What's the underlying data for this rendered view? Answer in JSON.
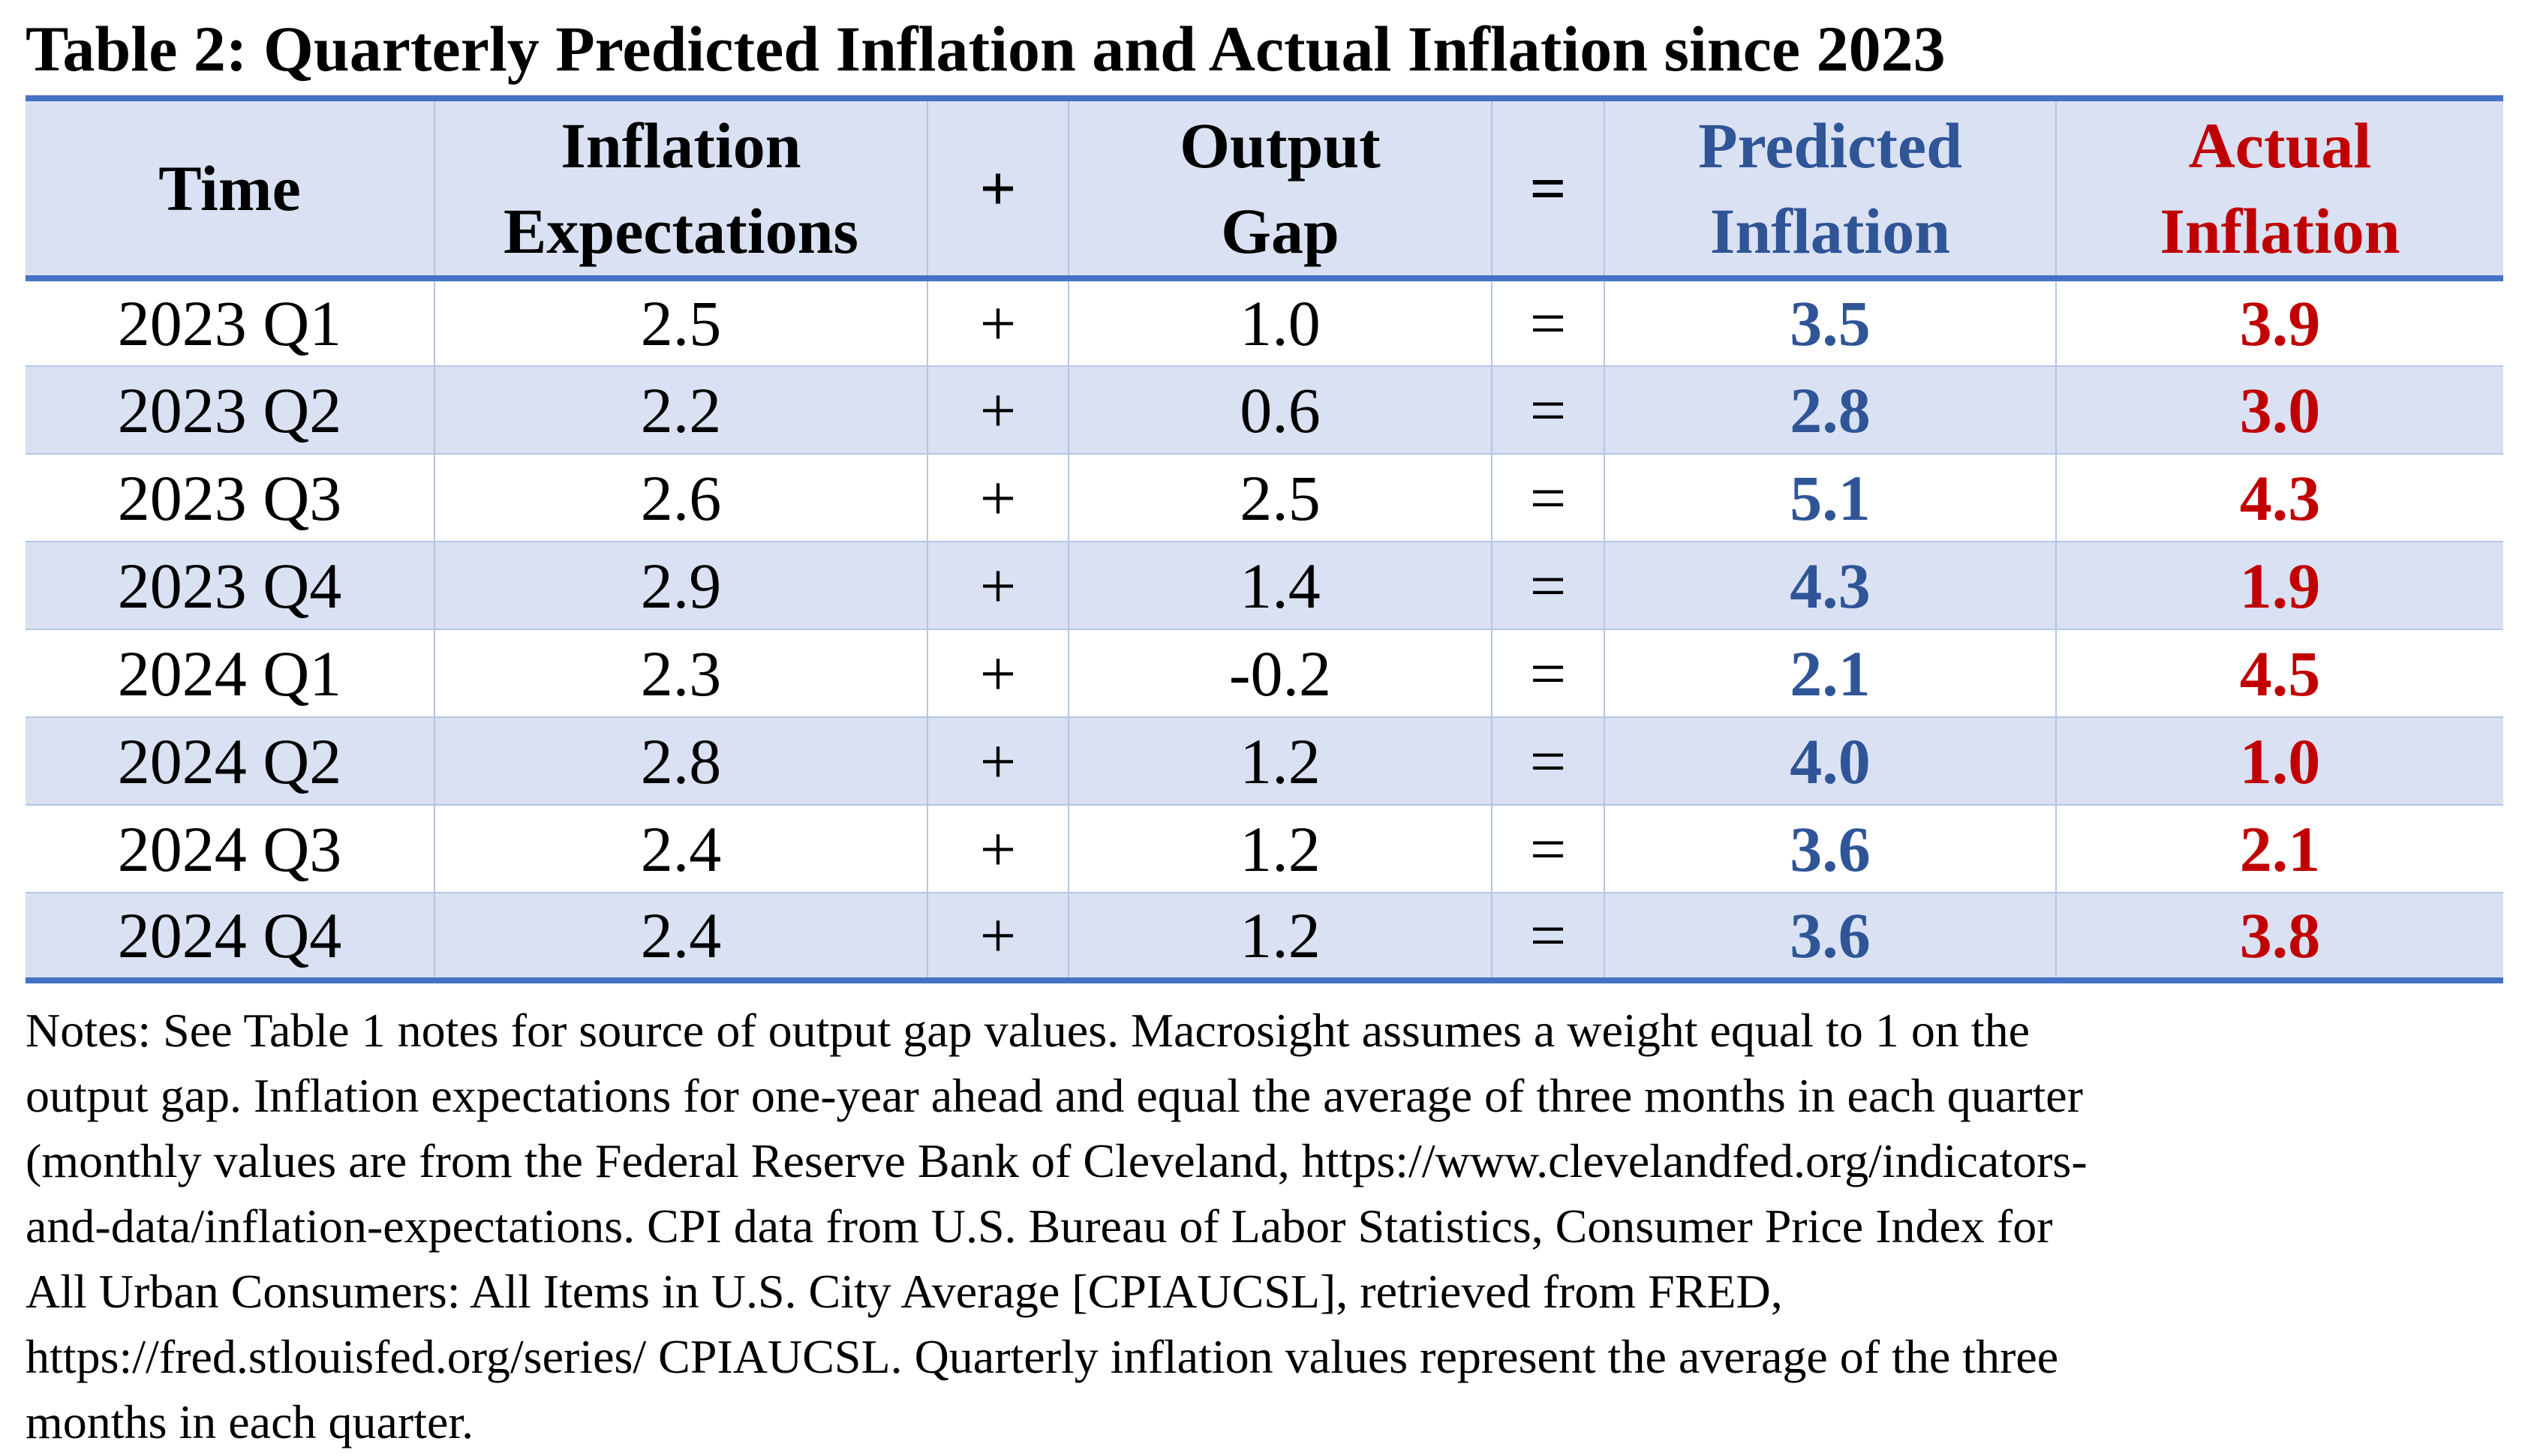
{
  "title": "Table 2: Quarterly Predicted Inflation and Actual Inflation since 2023",
  "colors": {
    "header_bg": "#d9e1f2",
    "border_accent": "#4472c4",
    "predicted": "#2f5597",
    "actual": "#c00000"
  },
  "headers": {
    "time": "Time",
    "expectations_line1": "Inflation",
    "expectations_line2": "Expectations",
    "plus": "+",
    "gap_line1": "Output",
    "gap_line2": "Gap",
    "equals": "=",
    "predicted_line1": "Predicted",
    "predicted_line2": "Inflation",
    "actual_line1": "Actual",
    "actual_line2": "Inflation"
  },
  "rows": [
    {
      "time": "2023 Q1",
      "expectations": "2.5",
      "plus": "+",
      "gap": "1.0",
      "equals": "=",
      "predicted": "3.5",
      "actual": "3.9"
    },
    {
      "time": "2023 Q2",
      "expectations": "2.2",
      "plus": "+",
      "gap": "0.6",
      "equals": "=",
      "predicted": "2.8",
      "actual": "3.0"
    },
    {
      "time": "2023 Q3",
      "expectations": "2.6",
      "plus": "+",
      "gap": "2.5",
      "equals": "=",
      "predicted": "5.1",
      "actual": "4.3"
    },
    {
      "time": "2023 Q4",
      "expectations": "2.9",
      "plus": "+",
      "gap": "1.4",
      "equals": "=",
      "predicted": "4.3",
      "actual": "1.9"
    },
    {
      "time": "2024 Q1",
      "expectations": "2.3",
      "plus": "+",
      "gap": "-0.2",
      "equals": "=",
      "predicted": "2.1",
      "actual": "4.5"
    },
    {
      "time": "2024 Q2",
      "expectations": "2.8",
      "plus": "+",
      "gap": "1.2",
      "equals": "=",
      "predicted": "4.0",
      "actual": "1.0"
    },
    {
      "time": "2024 Q3",
      "expectations": "2.4",
      "plus": "+",
      "gap": "1.2",
      "equals": "=",
      "predicted": "3.6",
      "actual": "2.1"
    },
    {
      "time": "2024 Q4",
      "expectations": "2.4",
      "plus": "+",
      "gap": "1.2",
      "equals": "=",
      "predicted": "3.6",
      "actual": "3.8"
    }
  ],
  "notes": [
    "Notes: See Table 1 notes for source of output gap values. Macrosight assumes a weight equal to 1 on the",
    "output gap. Inflation expectations for one-year ahead and equal the average of three months in each quarter",
    "(monthly values are from the Federal Reserve Bank of Cleveland, https://www.clevelandfed.org/indicators-",
    "and-data/inflation-expectations. CPI data from U.S. Bureau of Labor Statistics, Consumer Price Index for",
    "All Urban Consumers: All Items in U.S. City Average [CPIAUCSL], retrieved from FRED,",
    "https://fred.stlouisfed.org/series/ CPIAUCSL. Quarterly inflation values represent the average of the three",
    "months in each quarter."
  ]
}
